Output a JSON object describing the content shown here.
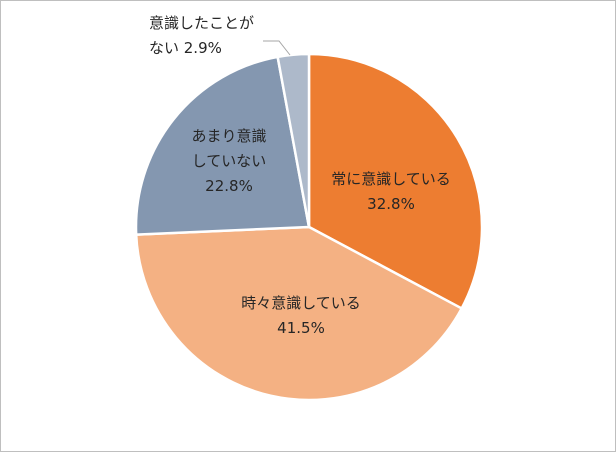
{
  "chart_data": {
    "type": "pie",
    "start": "top, clockwise",
    "slices": [
      {
        "label_lines": [
          "常に意識している"
        ],
        "value_text": "32.8%",
        "value": 32.8,
        "color": "#ED7D31"
      },
      {
        "label_lines": [
          "時々意識している"
        ],
        "value_text": "41.5%",
        "value": 41.5,
        "color": "#F4B183"
      },
      {
        "label_lines": [
          "あまり意識",
          "していない"
        ],
        "value_text": "22.8%",
        "value": 22.8,
        "color": "#8497B0"
      },
      {
        "label_lines": [
          "意識したことが",
          "ない"
        ],
        "value_text": "2.9%",
        "value": 2.9,
        "color": "#ADB9CA"
      }
    ],
    "slice_border_color": "#FFFFFF",
    "legend": "none"
  }
}
